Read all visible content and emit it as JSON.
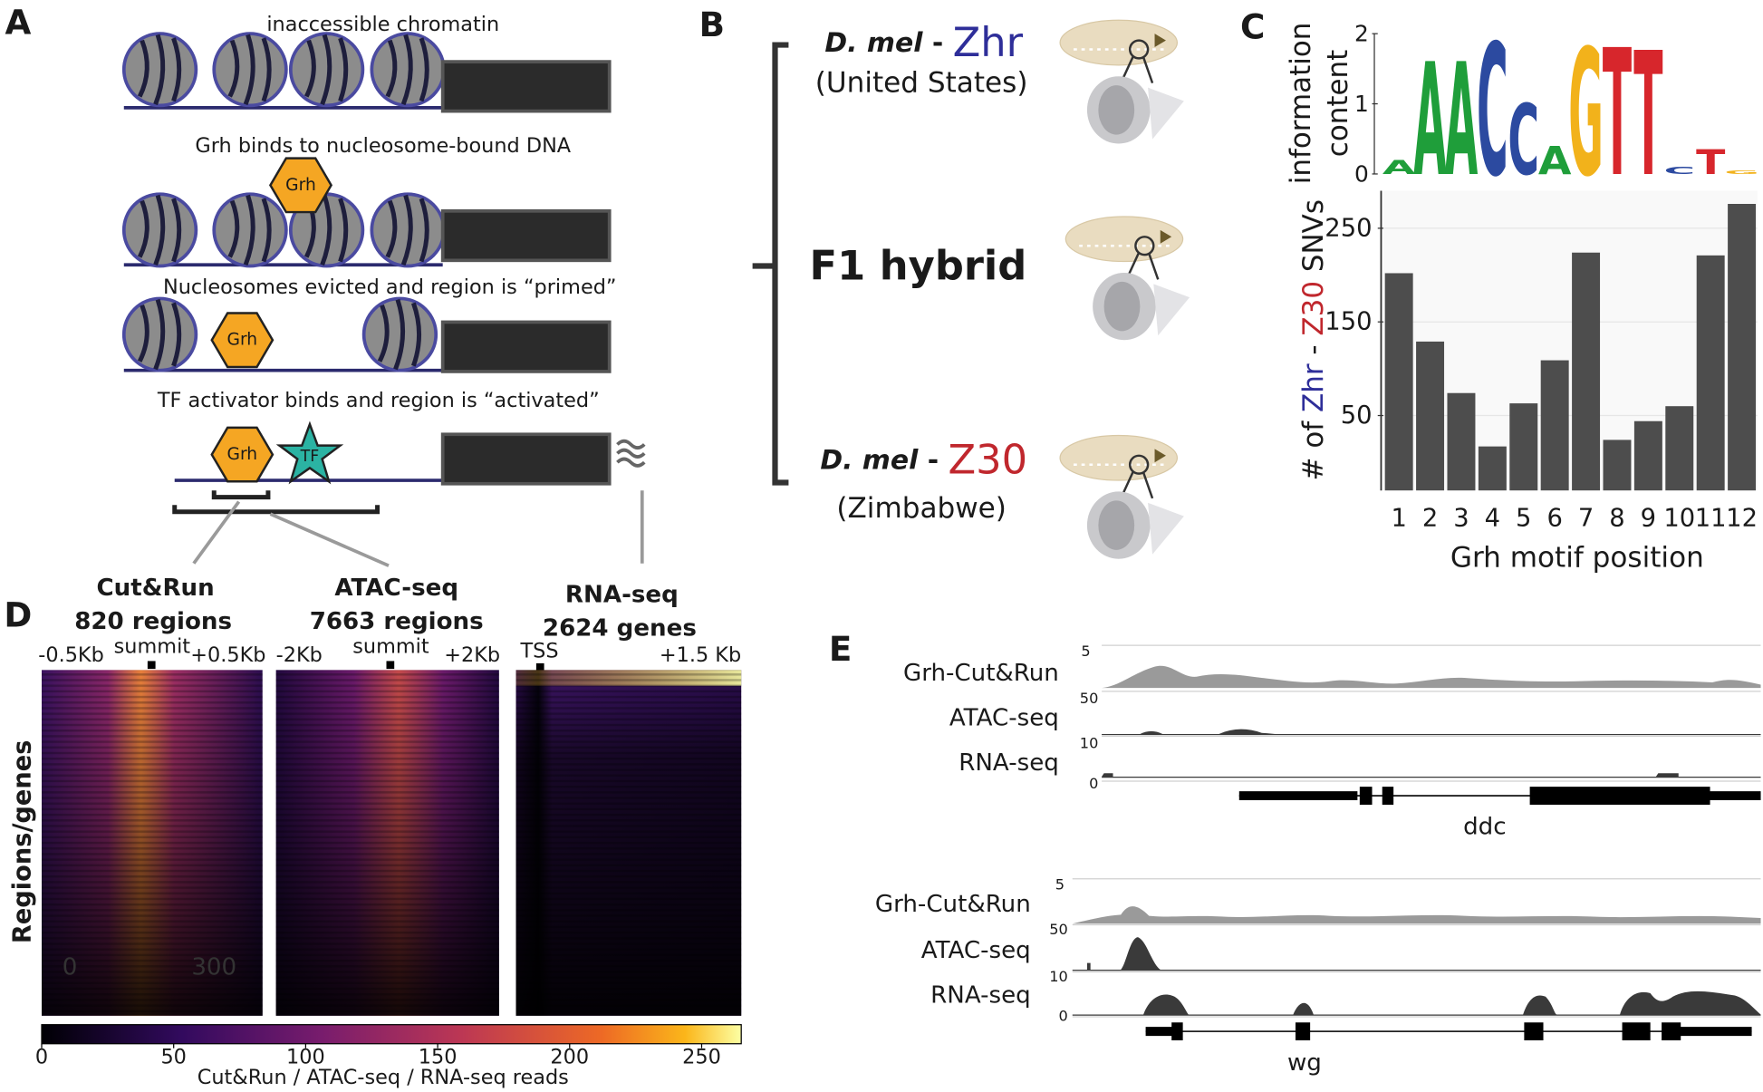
{
  "panel_a": {
    "letter": "A",
    "steps": [
      "inaccessible chromatin",
      "Grh binds to nucleosome-bound DNA",
      "Nucleosomes evicted and region is “primed”",
      "TF activator binds and region is “activated”"
    ],
    "grh": "Grh",
    "tf": "TF"
  },
  "panel_b": {
    "letter": "B",
    "species": "D. mel",
    "dash": " - ",
    "strains": [
      {
        "id": "Zhr",
        "origin": "(United States)"
      },
      {
        "id": "Z30",
        "origin": "(Zimbabwe)"
      }
    ],
    "hybrid": "F1 hybrid"
  },
  "logo": {
    "ylabel": [
      "information",
      "content"
    ],
    "ylim": [
      0,
      2
    ],
    "yticks": [
      0,
      1,
      2
    ],
    "letters": [
      {
        "letter": "A",
        "height": 0.2,
        "color": "#1f9e3a"
      },
      {
        "letter": "A",
        "height": 1.6,
        "color": "#1f9e3a"
      },
      {
        "letter": "A",
        "height": 1.6,
        "color": "#1f9e3a"
      },
      {
        "letter": "C",
        "height": 1.87,
        "color": "#2c4aa0"
      },
      {
        "letter": "C",
        "height": 1.0,
        "color": "#2c4aa0"
      },
      {
        "letter": "A",
        "height": 0.4,
        "color": "#1f9e3a"
      },
      {
        "letter": "G",
        "height": 1.8,
        "color": "#f2b21b"
      },
      {
        "letter": "T",
        "height": 1.8,
        "color": "#d7262c"
      },
      {
        "letter": "T",
        "height": 1.76,
        "color": "#d7262c"
      },
      {
        "letter": "C",
        "height": 0.1,
        "color": "#2c4aa0"
      },
      {
        "letter": "T",
        "height": 0.35,
        "color": "#d7262c"
      },
      {
        "letter": "G",
        "height": 0.05,
        "color": "#f2b21b"
      }
    ]
  },
  "chart_data": {
    "type": "bar",
    "letter": "C",
    "ylabel": [
      "# of ",
      "Zhr",
      " - ",
      "Z30",
      " SNVs"
    ],
    "xlabel": "Grh motif position",
    "categories": [
      "1",
      "2",
      "3",
      "4",
      "5",
      "6",
      "7",
      "8",
      "9",
      "10",
      "11",
      "12"
    ],
    "values": [
      202,
      129,
      74,
      17,
      63,
      109,
      224,
      24,
      44,
      60,
      221,
      276
    ],
    "color": "#4d4d4d",
    "ylim": [
      -30,
      290
    ],
    "yticks": [
      50,
      150,
      250
    ],
    "grid": true
  },
  "panel_d": {
    "letter": "D",
    "heatmaps": [
      {
        "assay": "Cut&Run",
        "count": "820 regions",
        "left": "-0.5Kb",
        "center": "summit",
        "right": "+0.5Kb"
      },
      {
        "assay": "ATAC-seq",
        "count": "7663 regions",
        "left": "-2Kb",
        "center": "summit",
        "right": "+2Kb"
      },
      {
        "assay": "RNA-seq",
        "count": "2624 genes",
        "left": "TSS",
        "right": "+1.5 Kb"
      }
    ],
    "ylabel": "Regions/genes",
    "overlay": [
      "0",
      "300"
    ],
    "colorbar": {
      "lim": [
        0,
        265
      ],
      "ticks": [
        0,
        50,
        100,
        150,
        200,
        250
      ],
      "label": "Cut&Run / ATAC-seq / RNA-seq reads"
    }
  },
  "panel_e": {
    "letter": "E",
    "loci": [
      {
        "gene": "ddc",
        "tracks": [
          "Grh-Cut&Run",
          "ATAC-seq",
          "RNA-seq"
        ],
        "scales": [
          "5",
          "50",
          "10",
          "0"
        ]
      },
      {
        "gene": "wg",
        "tracks": [
          "Grh-Cut&Run",
          "ATAC-seq",
          "RNA-seq"
        ],
        "scales": [
          "5",
          "50",
          "10",
          "0"
        ]
      }
    ]
  }
}
